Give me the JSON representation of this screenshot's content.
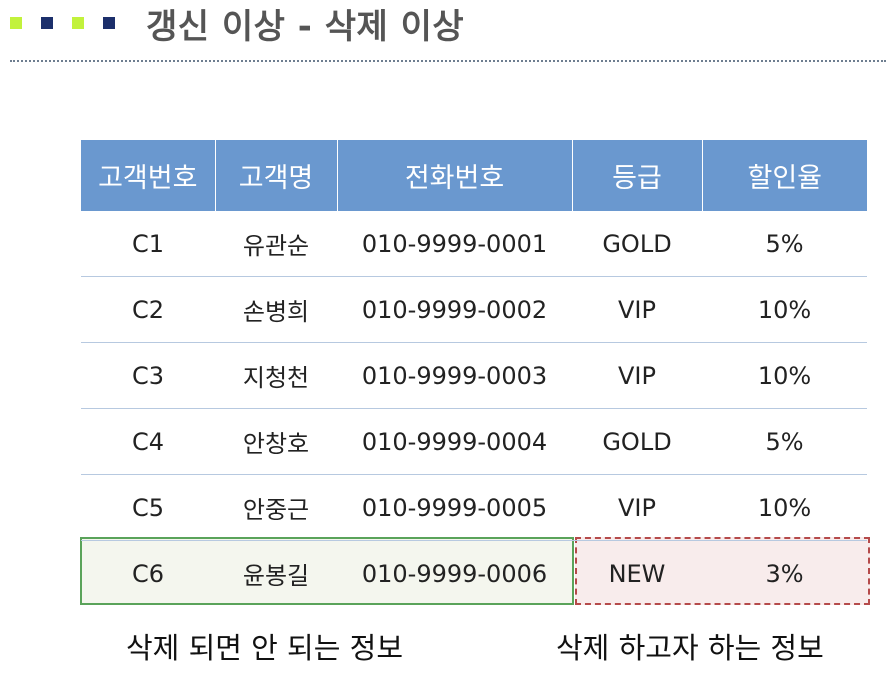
{
  "header": {
    "title": "갱신 이상 - 삭제 이상",
    "bullet_colors": [
      "#c2f23c",
      "#1c2f6b",
      "#c2f23c",
      "#1c2f6b"
    ]
  },
  "table": {
    "columns": [
      "고객번호",
      "고객명",
      "전화번호",
      "등급",
      "할인율"
    ],
    "rows": [
      [
        "C1",
        "유관순",
        "010-9999-0001",
        "GOLD",
        "5%"
      ],
      [
        "C2",
        "손병희",
        "010-9999-0002",
        "VIP",
        "10%"
      ],
      [
        "C3",
        "지청천",
        "010-9999-0003",
        "VIP",
        "10%"
      ],
      [
        "C4",
        "안창호",
        "010-9999-0004",
        "GOLD",
        "5%"
      ],
      [
        "C5",
        "안중근",
        "010-9999-0005",
        "VIP",
        "10%"
      ],
      [
        "C6",
        "윤봉길",
        "010-9999-0006",
        "NEW",
        "3%"
      ]
    ]
  },
  "captions": {
    "keep": "삭제 되면 안 되는 정보",
    "remove": "삭제 하고자 하는 정보"
  },
  "colors": {
    "header_fill": "#6a98cf",
    "keep_border": "#5aa35a",
    "remove_border": "#b54a4a"
  }
}
